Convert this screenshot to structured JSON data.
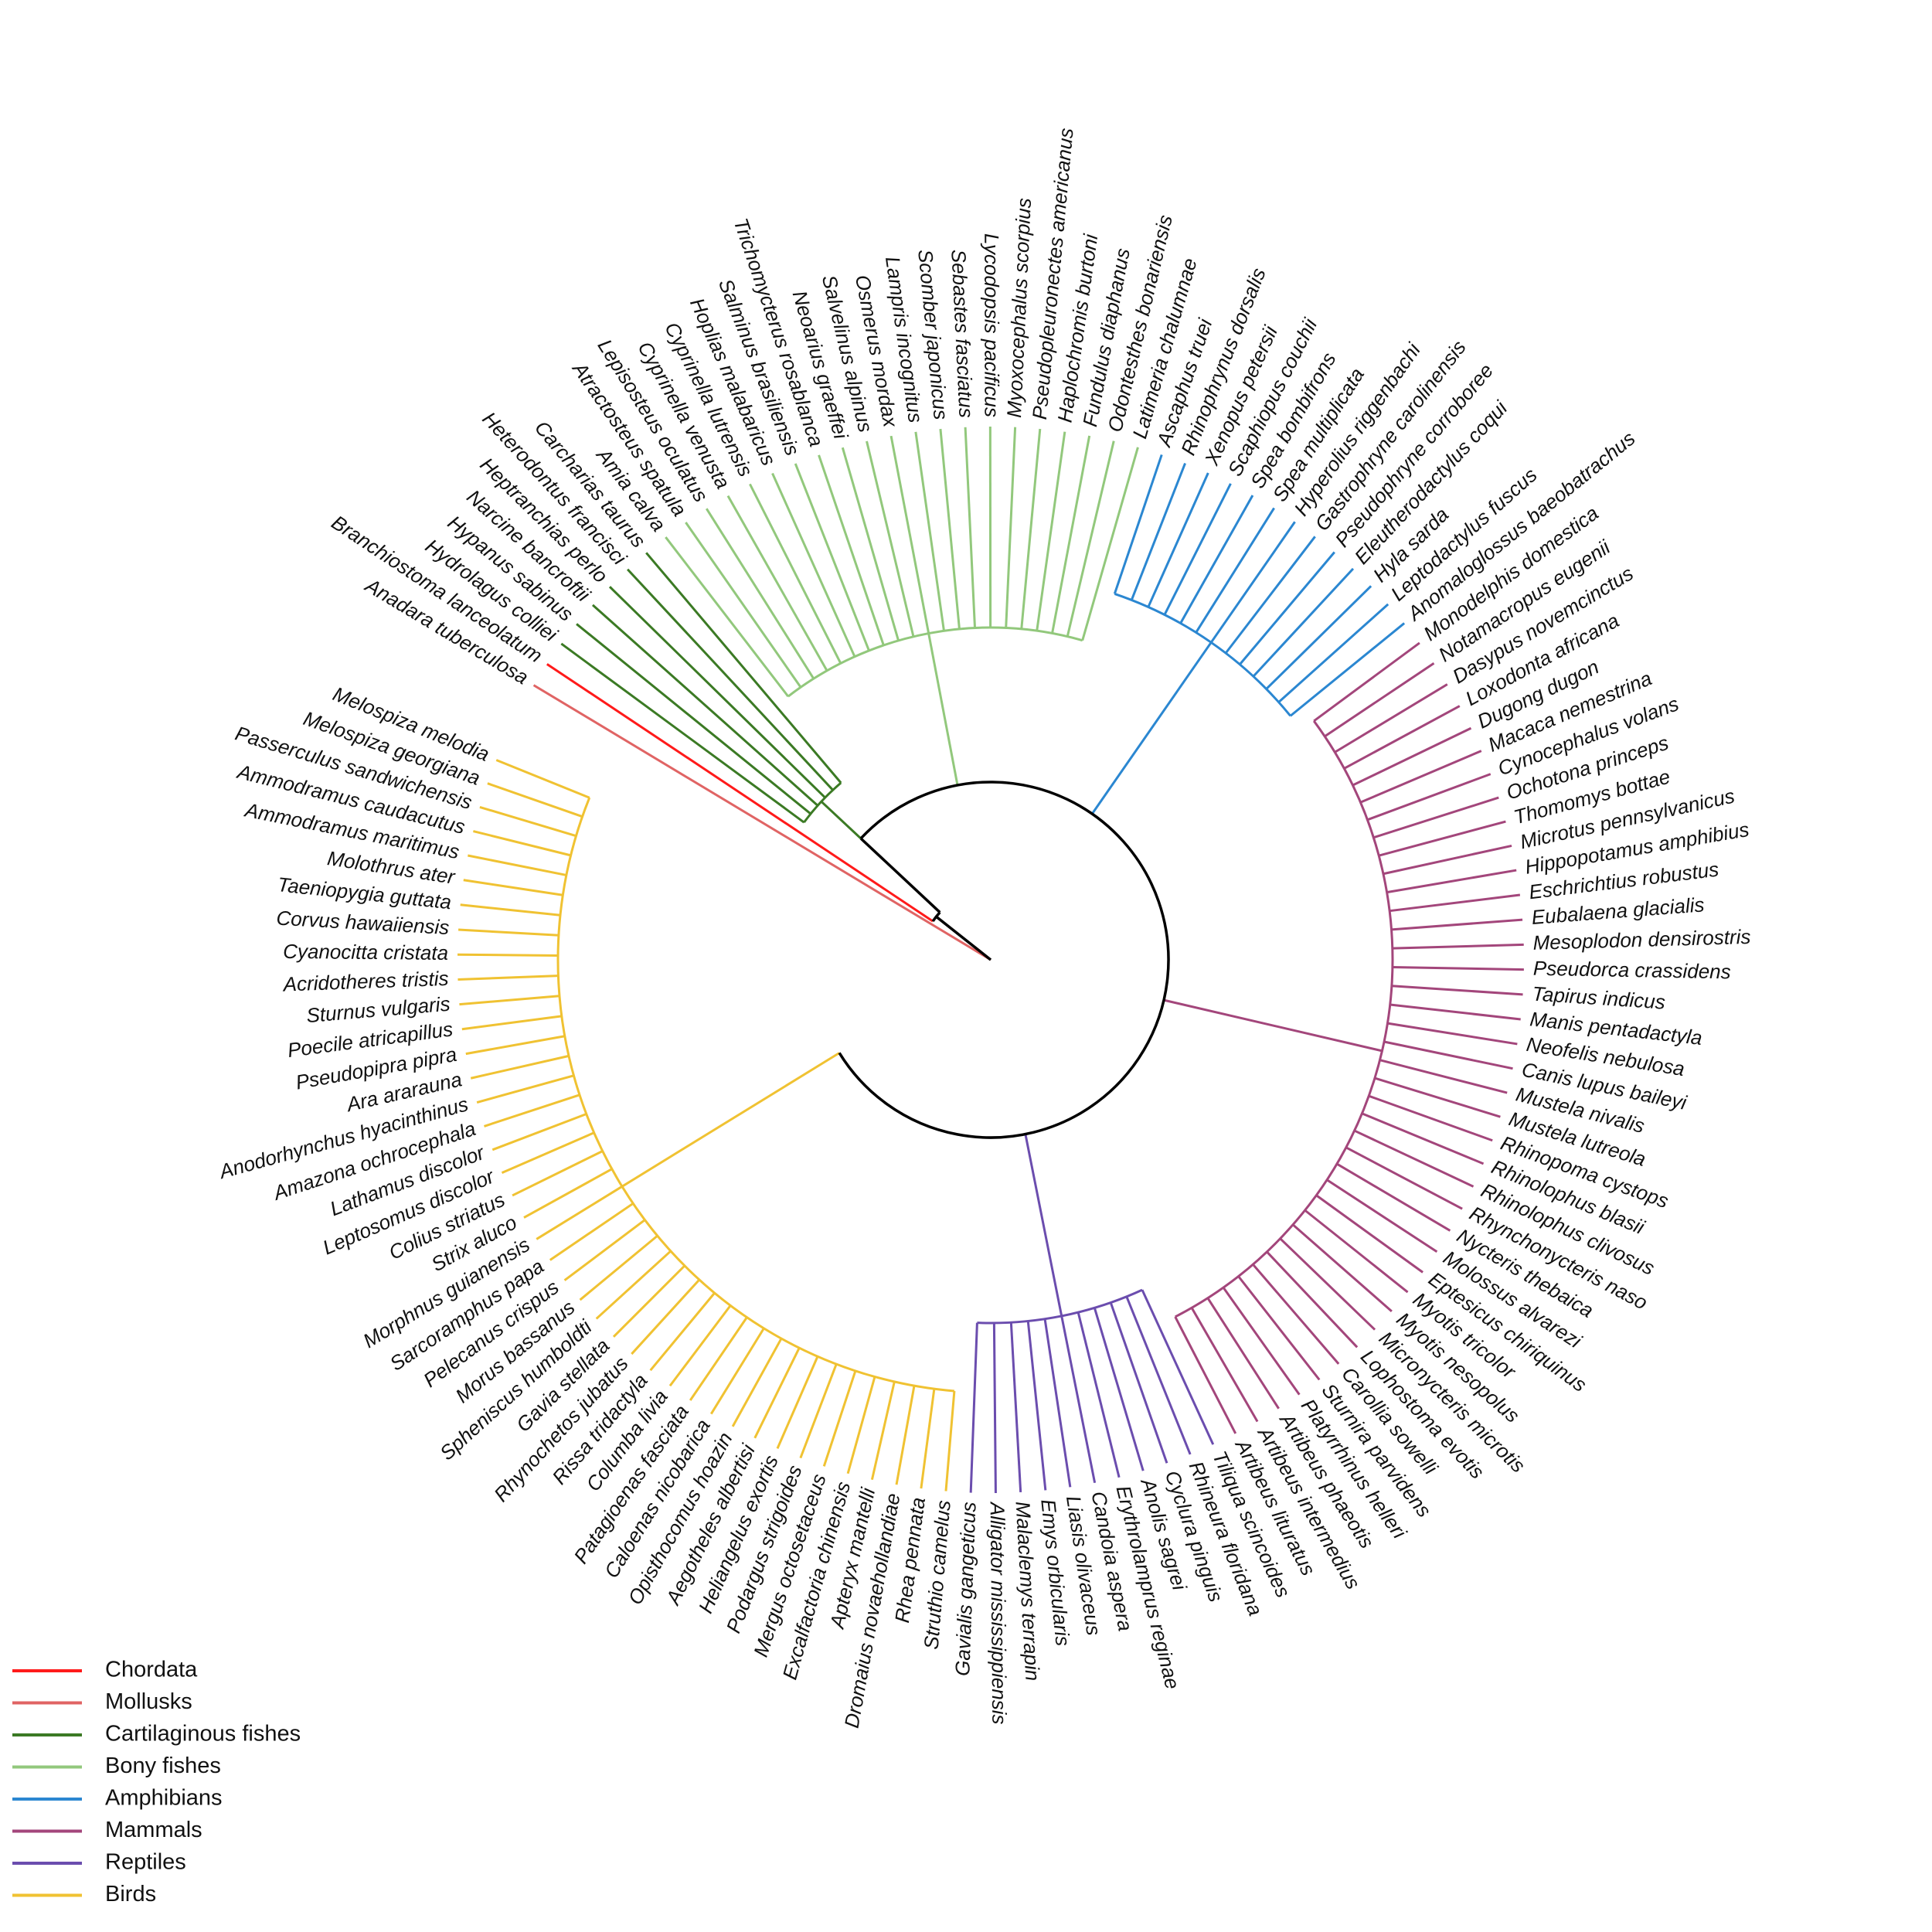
{
  "groups": [
    {
      "name": "Mollusks",
      "color": "#e06464",
      "species": [
        "Anadara tuberculosa"
      ]
    },
    {
      "name": "Chordata",
      "color": "#ff1a1a",
      "species": [
        "Branchiostoma lanceolatum"
      ]
    },
    {
      "name": "Cartilaginous fishes",
      "color": "#3b7a24",
      "species": [
        "Hydrolagus colliei",
        "Hypanus sabinus",
        "Narcine bancroftii",
        "Heptranchias perlo",
        "Heterodontus francisci",
        "Carcharias taurus"
      ]
    },
    {
      "name": "Bony fishes",
      "color": "#92c87c",
      "species": [
        "Amia calva",
        "Atractosteus spatula",
        "Lepisosteus oculatus",
        "Cyprinella venusta",
        "Cyprinella lutrensis",
        "Hoplias malabaricus",
        "Salminus brasiliensis",
        "Trichomycterus rosablanca",
        "Neoarius graeffei",
        "Salvelinus alpinus",
        "Osmerus mordax",
        "Lampris incognitus",
        "Scomber japonicus",
        "Sebastes fasciatus",
        "Lycodopsis pacificus",
        "Myoxocephalus scorpius",
        "Pseudopleuronectes americanus",
        "Haplochromis burtoni",
        "Fundulus diaphanus",
        "Odontesthes bonariensis",
        "Latimeria chalumnae"
      ]
    },
    {
      "name": "Amphibians",
      "color": "#2b87d1",
      "species": [
        "Ascaphus truei",
        "Rhinophrynus dorsalis",
        "Xenopus petersii",
        "Scaphiopus couchii",
        "Spea bombifrons",
        "Spea multiplicata",
        "Hyperolius riggenbachi",
        "Gastrophryne carolinensis",
        "Pseudophryne corroboree",
        "Eleutherodactylus coqui",
        "Hyla sarda",
        "Leptodactylus fuscus",
        "Anomaloglossus baeobatrachus"
      ]
    },
    {
      "name": "Mammals",
      "color": "#a3467b",
      "species": [
        "Monodelphis domestica",
        "Notamacropus eugenii",
        "Dasypus novemcinctus",
        "Loxodonta africana",
        "Dugong dugon",
        "Macaca nemestrina",
        "Cynocephalus volans",
        "Ochotona princeps",
        "Thomomys bottae",
        "Microtus pennsylvanicus",
        "Hippopotamus amphibius",
        "Eschrichtius robustus",
        "Eubalaena glacialis",
        "Mesoplodon densirostris",
        "Pseudorca crassidens",
        "Tapirus indicus",
        "Manis pentadactyla",
        "Neofelis nebulosa",
        "Canis lupus baileyi",
        "Mustela nivalis",
        "Mustela lutreola",
        "Rhinopoma cystops",
        "Rhinolophus blasii",
        "Rhinolophus clivosus",
        "Rhynchonycteris naso",
        "Nycteris thebaica",
        "Molossus alvarezi",
        "Eptesicus chiriquinus",
        "Myotis tricolor",
        "Myotis nesopolus",
        "Micronycteris microtis",
        "Lophostoma evotis",
        "Carollia sowelli",
        "Sturnira parvidens",
        "Platyrrhinus helleri",
        "Artibeus phaeotis",
        "Artibeus intermedius",
        "Artibeus lituratus"
      ]
    },
    {
      "name": "Reptiles",
      "color": "#6b4dae",
      "species": [
        "Tiliqua scincoides",
        "Rhineura floridana",
        "Cyclura pinguis",
        "Anolis sagrei",
        "Erythrolamprus reginae",
        "Candoia aspera",
        "Liasis olivaceus",
        "Emys orbicularis",
        "Malaclemys terrapin",
        "Alligator mississippiensis",
        "Gavialis gangeticus"
      ]
    },
    {
      "name": "Birds",
      "color": "#f0c232",
      "species": [
        "Struthio camelus",
        "Rhea pennata",
        "Dromaius novaehollandiae",
        "Apteryx mantelli",
        "Excalfactoria chinensis",
        "Mergus octosetaceus",
        "Podargus strigoides",
        "Heliangelus exortis",
        "Aegotheles albertisi",
        "Opisthocomus hoazin",
        "Caloenas nicobarica",
        "Patagioenas fasciata",
        "Columba livia",
        "Rissa tridactyla",
        "Rhynochetos jubatus",
        "Gavia stellata",
        "Spheniscus humboldti",
        "Morus bassanus",
        "Pelecanus crispus",
        "Sarcoramphus papa",
        "Morphnus guianensis",
        "Strix aluco",
        "Colius striatus",
        "Leptosomus discolor",
        "Lathamus discolor",
        "Amazona ochrocephala",
        "Anodorhynchus hyacinthinus",
        "Ara ararauna",
        "Pseudopipra pipra",
        "Poecile atricapillus",
        "Sturnus vulgaris",
        "Acridotheres tristis",
        "Cyanocitta cristata",
        "Corvus hawaiiensis",
        "Taeniopygia guttata",
        "Molothrus ater",
        "Ammodramus maritimus",
        "Ammodramus caudacutus",
        "Passerculus sandwichensis",
        "Melospiza georgiana",
        "Melospiza melodia"
      ]
    }
  ],
  "legend": [
    {
      "label": "Chordata",
      "color": "#ff1a1a"
    },
    {
      "label": "Mollusks",
      "color": "#e06464"
    },
    {
      "label": "Cartilaginous fishes",
      "color": "#3b7a24"
    },
    {
      "label": "Bony fishes",
      "color": "#92c87c"
    },
    {
      "label": "Amphibians",
      "color": "#2b87d1"
    },
    {
      "label": "Mammals",
      "color": "#a3467b"
    },
    {
      "label": "Reptiles",
      "color": "#6b4dae"
    },
    {
      "label": "Birds",
      "color": "#f0c232"
    }
  ],
  "backbone_color": "#000000"
}
